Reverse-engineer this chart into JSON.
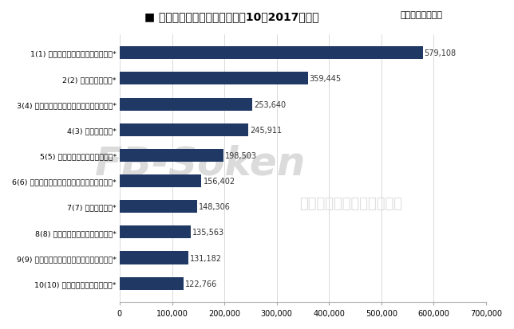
{
  "title_main": "■ 外食上場企業・売上高ベスト10（2017年度）",
  "title_sub": "（単位：百万円）",
  "bar_color": "#1f3864",
  "background_color": "#ffffff",
  "xlim": [
    0,
    700000
  ],
  "xticks": [
    0,
    100000,
    200000,
    300000,
    400000,
    500000,
    600000,
    700000
  ],
  "xtick_labels": [
    "0",
    "100,000",
    "200,000",
    "300,000",
    "400,000",
    "500,000",
    "600,000",
    "700,000"
  ],
  "categories": [
    "1(1) 株ゼンショーホールディングス*",
    "2(2) 株すかいらーく*",
    "3(4) 日本マクドナルドホールディングス株*",
    "4(3) 株コロワイド*",
    "5(5) 株吉野家ホールディングス*",
    "6(6) 有スシローグローバルホールディングス*",
    "7(7) 株サイゼリヤ*",
    "8(8) ロイヤルホールディングス株*",
    "9(9) 株ドトール・日レスホールディングス*",
    "10(10) 株くらコーポレーション*"
  ],
  "values": [
    579108,
    359445,
    253640,
    245911,
    198503,
    156402,
    148306,
    135563,
    131182,
    122766
  ],
  "value_labels": [
    "579,108",
    "359,445",
    "253,640",
    "245,911",
    "198,503",
    "156,402",
    "148,306",
    "135,563",
    "131,182",
    "122,766"
  ],
  "watermark1": "FB-Soken",
  "watermark2": "フードビジネス総合研究所"
}
